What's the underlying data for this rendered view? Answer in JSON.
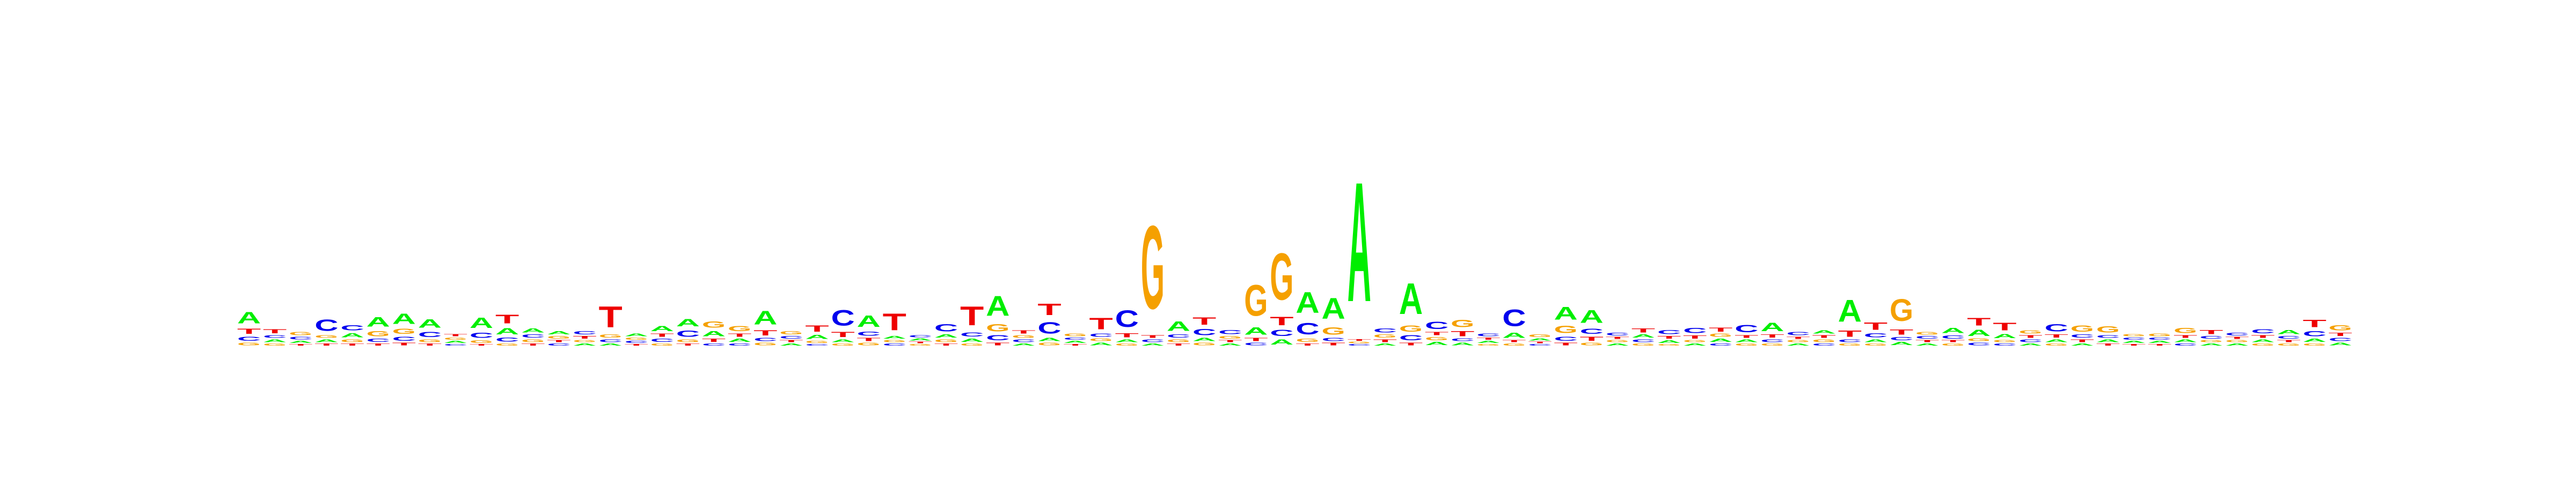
{
  "chart_data": {
    "type": "sequence-logo",
    "alphabet": [
      "A",
      "C",
      "G",
      "T"
    ],
    "colors": {
      "A": "#00ee00",
      "C": "#0000ee",
      "G": "#f5a000",
      "T": "#ee0000"
    },
    "axes": false,
    "grid": false,
    "legend": "none",
    "dominant_letters": [
      {
        "position": 1,
        "letter": "A",
        "height": 0.22
      },
      {
        "position": 4,
        "letter": "C",
        "height": 0.22
      },
      {
        "position": 6,
        "letter": "A",
        "height": 0.18
      },
      {
        "position": 7,
        "letter": "A",
        "height": 0.2
      },
      {
        "position": 8,
        "letter": "A",
        "height": 0.16
      },
      {
        "position": 10,
        "letter": "A",
        "height": 0.2
      },
      {
        "position": 11,
        "letter": "T",
        "height": 0.17
      },
      {
        "position": 15,
        "letter": "T",
        "height": 0.4
      },
      {
        "position": 18,
        "letter": "A",
        "height": 0.14
      },
      {
        "position": 21,
        "letter": "A",
        "height": 0.26
      },
      {
        "position": 24,
        "letter": "C",
        "height": 0.3
      },
      {
        "position": 25,
        "letter": "A",
        "height": 0.22
      },
      {
        "position": 26,
        "letter": "T",
        "height": 0.32
      },
      {
        "position": 29,
        "letter": "T",
        "height": 0.36
      },
      {
        "position": 30,
        "letter": "A",
        "height": 0.38
      },
      {
        "position": 32,
        "letter": "T",
        "height": 0.22
      },
      {
        "position": 34,
        "letter": "T",
        "height": 0.22
      },
      {
        "position": 35,
        "letter": "C",
        "height": 0.32
      },
      {
        "position": 36,
        "letter": "G",
        "height": 1.6
      },
      {
        "position": 37,
        "letter": "A",
        "height": 0.18
      },
      {
        "position": 38,
        "letter": "T",
        "height": 0.14
      },
      {
        "position": 40,
        "letter": "G",
        "height": 0.6
      },
      {
        "position": 41,
        "letter": "G",
        "height": 0.9
      },
      {
        "position": 42,
        "letter": "A",
        "height": 0.4
      },
      {
        "position": 43,
        "letter": "A",
        "height": 0.4
      },
      {
        "position": 44,
        "letter": "A",
        "height": 2.3
      },
      {
        "position": 46,
        "letter": "A",
        "height": 0.6
      },
      {
        "position": 48,
        "letter": "G",
        "height": 0.14
      },
      {
        "position": 50,
        "letter": "C",
        "height": 0.32
      },
      {
        "position": 52,
        "letter": "A",
        "height": 0.25
      },
      {
        "position": 53,
        "letter": "A",
        "height": 0.25
      },
      {
        "position": 59,
        "letter": "C",
        "height": 0.14
      },
      {
        "position": 60,
        "letter": "A",
        "height": 0.16
      },
      {
        "position": 63,
        "letter": "A",
        "height": 0.42
      },
      {
        "position": 65,
        "letter": "G",
        "height": 0.42
      },
      {
        "position": 68,
        "letter": "T",
        "height": 0.15
      },
      {
        "position": 69,
        "letter": "T",
        "height": 0.15
      },
      {
        "position": 71,
        "letter": "C",
        "height": 0.14
      },
      {
        "position": 72,
        "letter": "G",
        "height": 0.12
      },
      {
        "position": 73,
        "letter": "G",
        "height": 0.12
      },
      {
        "position": 76,
        "letter": "G",
        "height": 0.1
      },
      {
        "position": 77,
        "letter": "T",
        "height": 0.08
      },
      {
        "position": 79,
        "letter": "C",
        "height": 0.08
      },
      {
        "position": 81,
        "letter": "T",
        "height": 0.14
      },
      {
        "position": 82,
        "letter": "G",
        "height": 0.1
      }
    ],
    "columns": [
      {
        "position": 1,
        "A": 0.22,
        "C": 0.08,
        "G": 0.05,
        "T": 0.1
      },
      {
        "position": 2,
        "A": 0.05,
        "C": 0.05,
        "G": 0.04,
        "T": 0.08
      },
      {
        "position": 3,
        "A": 0.04,
        "C": 0.05,
        "G": 0.06,
        "T": 0.03
      },
      {
        "position": 4,
        "A": 0.05,
        "C": 0.22,
        "G": 0.05,
        "T": 0.04
      },
      {
        "position": 5,
        "A": 0.08,
        "C": 0.1,
        "G": 0.05,
        "T": 0.04
      },
      {
        "position": 6,
        "A": 0.18,
        "C": 0.06,
        "G": 0.1,
        "T": 0.04
      },
      {
        "position": 7,
        "A": 0.2,
        "C": 0.08,
        "G": 0.1,
        "T": 0.05
      },
      {
        "position": 8,
        "A": 0.16,
        "C": 0.1,
        "G": 0.05,
        "T": 0.04
      },
      {
        "position": 9,
        "A": 0.04,
        "C": 0.03,
        "G": 0.04,
        "T": 0.04
      },
      {
        "position": 10,
        "A": 0.2,
        "C": 0.1,
        "G": 0.05,
        "T": 0.03
      },
      {
        "position": 11,
        "A": 0.12,
        "C": 0.08,
        "G": 0.04,
        "T": 0.17
      },
      {
        "position": 12,
        "A": 0.08,
        "C": 0.06,
        "G": 0.05,
        "T": 0.04
      },
      {
        "position": 13,
        "A": 0.06,
        "C": 0.04,
        "G": 0.05,
        "T": 0.04
      },
      {
        "position": 14,
        "A": 0.04,
        "C": 0.06,
        "G": 0.04,
        "T": 0.05
      },
      {
        "position": 15,
        "A": 0.04,
        "C": 0.05,
        "G": 0.06,
        "T": 0.4
      },
      {
        "position": 16,
        "A": 0.05,
        "C": 0.04,
        "G": 0.04,
        "T": 0.03
      },
      {
        "position": 17,
        "A": 0.1,
        "C": 0.06,
        "G": 0.04,
        "T": 0.06
      },
      {
        "position": 18,
        "A": 0.14,
        "C": 0.12,
        "G": 0.05,
        "T": 0.04
      },
      {
        "position": 19,
        "A": 0.1,
        "C": 0.04,
        "G": 0.12,
        "T": 0.06
      },
      {
        "position": 20,
        "A": 0.06,
        "C": 0.04,
        "G": 0.1,
        "T": 0.06
      },
      {
        "position": 21,
        "A": 0.26,
        "C": 0.06,
        "G": 0.05,
        "T": 0.1
      },
      {
        "position": 22,
        "A": 0.04,
        "C": 0.05,
        "G": 0.06,
        "T": 0.04
      },
      {
        "position": 23,
        "A": 0.08,
        "C": 0.03,
        "G": 0.04,
        "T": 0.12
      },
      {
        "position": 24,
        "A": 0.05,
        "C": 0.3,
        "G": 0.04,
        "T": 0.1
      },
      {
        "position": 25,
        "A": 0.22,
        "C": 0.08,
        "G": 0.05,
        "T": 0.06
      },
      {
        "position": 26,
        "A": 0.05,
        "C": 0.04,
        "G": 0.04,
        "T": 0.32
      },
      {
        "position": 27,
        "A": 0.04,
        "C": 0.04,
        "G": 0.03,
        "T": 0.03
      },
      {
        "position": 28,
        "A": 0.06,
        "C": 0.14,
        "G": 0.05,
        "T": 0.04
      },
      {
        "position": 29,
        "A": 0.06,
        "C": 0.08,
        "G": 0.04,
        "T": 0.36
      },
      {
        "position": 30,
        "A": 0.38,
        "C": 0.1,
        "G": 0.14,
        "T": 0.05
      },
      {
        "position": 31,
        "A": 0.04,
        "C": 0.05,
        "G": 0.05,
        "T": 0.06
      },
      {
        "position": 32,
        "A": 0.06,
        "C": 0.22,
        "G": 0.05,
        "T": 0.22
      },
      {
        "position": 33,
        "A": 0.04,
        "C": 0.04,
        "G": 0.05,
        "T": 0.03
      },
      {
        "position": 34,
        "A": 0.05,
        "C": 0.06,
        "G": 0.05,
        "T": 0.22
      },
      {
        "position": 35,
        "A": 0.05,
        "C": 0.32,
        "G": 0.04,
        "T": 0.08
      },
      {
        "position": 36,
        "A": 0.04,
        "C": 0.05,
        "G": 1.6,
        "T": 0.05
      },
      {
        "position": 37,
        "A": 0.18,
        "C": 0.06,
        "G": 0.05,
        "T": 0.04
      },
      {
        "position": 38,
        "A": 0.06,
        "C": 0.12,
        "G": 0.05,
        "T": 0.14
      },
      {
        "position": 39,
        "A": 0.04,
        "C": 0.08,
        "G": 0.05,
        "T": 0.04
      },
      {
        "position": 40,
        "A": 0.14,
        "C": 0.05,
        "G": 0.6,
        "T": 0.06
      },
      {
        "position": 41,
        "A": 0.1,
        "C": 0.12,
        "G": 0.9,
        "T": 0.16
      },
      {
        "position": 42,
        "A": 0.4,
        "C": 0.22,
        "G": 0.06,
        "T": 0.04
      },
      {
        "position": 43,
        "A": 0.4,
        "C": 0.06,
        "G": 0.14,
        "T": 0.05
      },
      {
        "position": 44,
        "A": 2.3,
        "C": 0.03,
        "G": 0.03,
        "T": 0.03
      },
      {
        "position": 45,
        "A": 0.04,
        "C": 0.08,
        "G": 0.06,
        "T": 0.05
      },
      {
        "position": 46,
        "A": 0.6,
        "C": 0.1,
        "G": 0.12,
        "T": 0.05
      },
      {
        "position": 47,
        "A": 0.06,
        "C": 0.14,
        "G": 0.06,
        "T": 0.06
      },
      {
        "position": 48,
        "A": 0.05,
        "C": 0.05,
        "G": 0.14,
        "T": 0.1
      },
      {
        "position": 49,
        "A": 0.04,
        "C": 0.05,
        "G": 0.03,
        "T": 0.04
      },
      {
        "position": 50,
        "A": 0.1,
        "C": 0.32,
        "G": 0.04,
        "T": 0.04
      },
      {
        "position": 51,
        "A": 0.04,
        "C": 0.03,
        "G": 0.05,
        "T": 0.03
      },
      {
        "position": 52,
        "A": 0.25,
        "C": 0.08,
        "G": 0.14,
        "T": 0.05
      },
      {
        "position": 53,
        "A": 0.25,
        "C": 0.1,
        "G": 0.05,
        "T": 0.08
      },
      {
        "position": 54,
        "A": 0.04,
        "C": 0.05,
        "G": 0.04,
        "T": 0.04
      },
      {
        "position": 55,
        "A": 0.06,
        "C": 0.05,
        "G": 0.04,
        "T": 0.08
      },
      {
        "position": 56,
        "A": 0.05,
        "C": 0.08,
        "G": 0.03,
        "T": 0.05
      },
      {
        "position": 57,
        "A": 0.04,
        "C": 0.1,
        "G": 0.04,
        "T": 0.06
      },
      {
        "position": 58,
        "A": 0.06,
        "C": 0.04,
        "G": 0.06,
        "T": 0.08
      },
      {
        "position": 59,
        "A": 0.05,
        "C": 0.14,
        "G": 0.04,
        "T": 0.05
      },
      {
        "position": 60,
        "A": 0.16,
        "C": 0.05,
        "G": 0.04,
        "T": 0.06
      },
      {
        "position": 61,
        "A": 0.04,
        "C": 0.06,
        "G": 0.04,
        "T": 0.04
      },
      {
        "position": 62,
        "A": 0.06,
        "C": 0.04,
        "G": 0.05,
        "T": 0.05
      },
      {
        "position": 63,
        "A": 0.42,
        "C": 0.05,
        "G": 0.04,
        "T": 0.12
      },
      {
        "position": 64,
        "A": 0.05,
        "C": 0.08,
        "G": 0.04,
        "T": 0.14
      },
      {
        "position": 65,
        "A": 0.06,
        "C": 0.06,
        "G": 0.42,
        "T": 0.1
      },
      {
        "position": 66,
        "A": 0.04,
        "C": 0.05,
        "G": 0.05,
        "T": 0.04
      },
      {
        "position": 67,
        "A": 0.1,
        "C": 0.06,
        "G": 0.04,
        "T": 0.04
      },
      {
        "position": 68,
        "A": 0.12,
        "C": 0.05,
        "G": 0.05,
        "T": 0.15
      },
      {
        "position": 69,
        "A": 0.08,
        "C": 0.04,
        "G": 0.04,
        "T": 0.15
      },
      {
        "position": 70,
        "A": 0.04,
        "C": 0.05,
        "G": 0.06,
        "T": 0.05
      },
      {
        "position": 71,
        "A": 0.05,
        "C": 0.14,
        "G": 0.04,
        "T": 0.06
      },
      {
        "position": 72,
        "A": 0.04,
        "C": 0.06,
        "G": 0.12,
        "T": 0.05
      },
      {
        "position": 73,
        "A": 0.05,
        "C": 0.05,
        "G": 0.12,
        "T": 0.04
      },
      {
        "position": 74,
        "A": 0.04,
        "C": 0.04,
        "G": 0.04,
        "T": 0.03
      },
      {
        "position": 75,
        "A": 0.04,
        "C": 0.04,
        "G": 0.05,
        "T": 0.03
      },
      {
        "position": 76,
        "A": 0.05,
        "C": 0.04,
        "G": 0.1,
        "T": 0.05
      },
      {
        "position": 77,
        "A": 0.04,
        "C": 0.05,
        "G": 0.04,
        "T": 0.08
      },
      {
        "position": 78,
        "A": 0.04,
        "C": 0.05,
        "G": 0.04,
        "T": 0.04
      },
      {
        "position": 79,
        "A": 0.05,
        "C": 0.08,
        "G": 0.04,
        "T": 0.05
      },
      {
        "position": 80,
        "A": 0.08,
        "C": 0.05,
        "G": 0.04,
        "T": 0.04
      },
      {
        "position": 81,
        "A": 0.06,
        "C": 0.1,
        "G": 0.04,
        "T": 0.14
      },
      {
        "position": 82,
        "A": 0.05,
        "C": 0.06,
        "G": 0.1,
        "T": 0.06
      }
    ]
  }
}
